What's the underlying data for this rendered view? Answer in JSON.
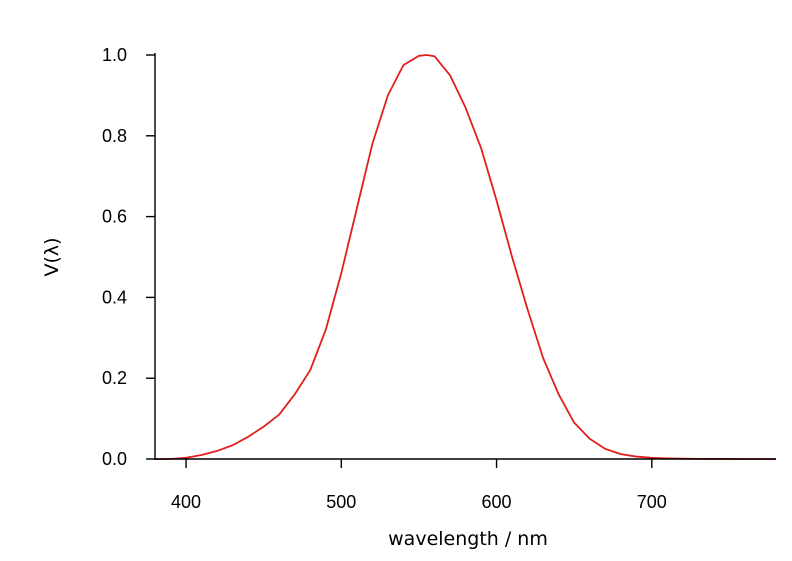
{
  "chart_data": {
    "type": "line",
    "xlabel": "wavelength / nm",
    "ylabel": "V(λ)",
    "xlim": [
      380,
      780
    ],
    "ylim": [
      0,
      1
    ],
    "x_ticks": [
      400,
      500,
      600,
      700
    ],
    "x_tick_labels": [
      "400",
      "500",
      "600",
      "700"
    ],
    "y_ticks": [
      0,
      0.2,
      0.4,
      0.6,
      0.8,
      1.0
    ],
    "y_tick_labels": [
      "0.0",
      "0.2",
      "0.4",
      "0.6",
      "0.8",
      "1.0"
    ],
    "grid": false,
    "series": [
      {
        "color": "#e0201b",
        "x": [
          380,
          390,
          400,
          410,
          420,
          430,
          440,
          450,
          460,
          470,
          480,
          490,
          500,
          510,
          520,
          530,
          540,
          550,
          555,
          560,
          570,
          580,
          590,
          600,
          610,
          620,
          630,
          640,
          650,
          660,
          670,
          680,
          690,
          700,
          710,
          720,
          730,
          740,
          750,
          760,
          770,
          780
        ],
        "y": [
          0.0,
          0.0,
          0.003,
          0.01,
          0.02,
          0.034,
          0.055,
          0.08,
          0.11,
          0.16,
          0.22,
          0.32,
          0.46,
          0.62,
          0.78,
          0.9,
          0.975,
          0.998,
          1.0,
          0.997,
          0.95,
          0.87,
          0.77,
          0.64,
          0.5,
          0.37,
          0.25,
          0.16,
          0.09,
          0.05,
          0.025,
          0.012,
          0.006,
          0.003,
          0.0015,
          0.0008,
          0.0004,
          0.0002,
          0.0001,
          0.0,
          0.0,
          0.0
        ]
      }
    ]
  }
}
